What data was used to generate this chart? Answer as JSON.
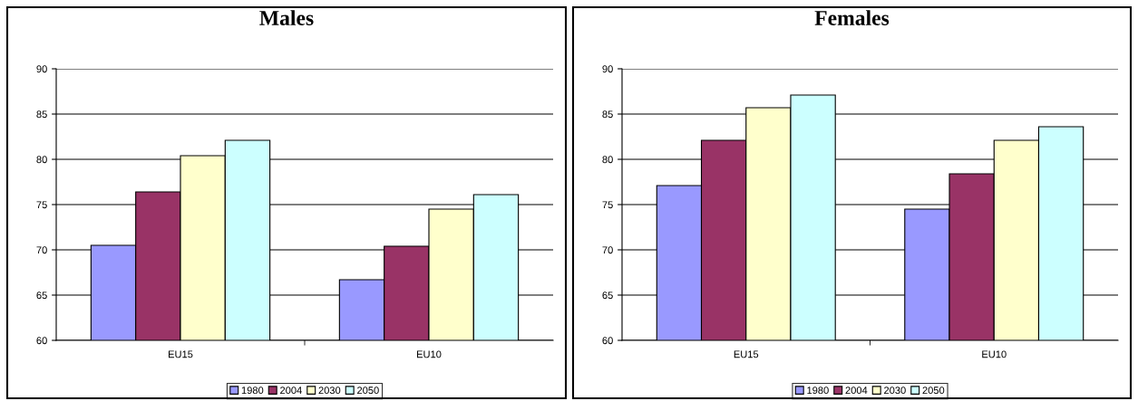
{
  "chart_data": [
    {
      "type": "bar",
      "title": "Males",
      "categories": [
        "EU15",
        "EU10"
      ],
      "series": [
        {
          "name": "1980",
          "color": "#9999ff",
          "values": [
            70.5,
            66.7
          ]
        },
        {
          "name": "2004",
          "color": "#993366",
          "values": [
            76.4,
            70.4
          ]
        },
        {
          "name": "2030",
          "color": "#ffffcc",
          "values": [
            80.4,
            74.5
          ]
        },
        {
          "name": "2050",
          "color": "#ccffff",
          "values": [
            82.1,
            76.1
          ]
        }
      ],
      "ylim": [
        60,
        90
      ],
      "yticks": [
        60,
        65,
        70,
        75,
        80,
        85,
        90
      ],
      "grid": "y",
      "legend": "bottom"
    },
    {
      "type": "bar",
      "title": "Females",
      "categories": [
        "EU15",
        "EU10"
      ],
      "series": [
        {
          "name": "1980",
          "color": "#9999ff",
          "values": [
            77.1,
            74.5
          ]
        },
        {
          "name": "2004",
          "color": "#993366",
          "values": [
            82.1,
            78.4
          ]
        },
        {
          "name": "2030",
          "color": "#ffffcc",
          "values": [
            85.7,
            82.1
          ]
        },
        {
          "name": "2050",
          "color": "#ccffff",
          "values": [
            87.1,
            83.6
          ]
        }
      ],
      "ylim": [
        60,
        90
      ],
      "yticks": [
        60,
        65,
        70,
        75,
        80,
        85,
        90
      ],
      "grid": "y",
      "legend": "bottom"
    }
  ]
}
